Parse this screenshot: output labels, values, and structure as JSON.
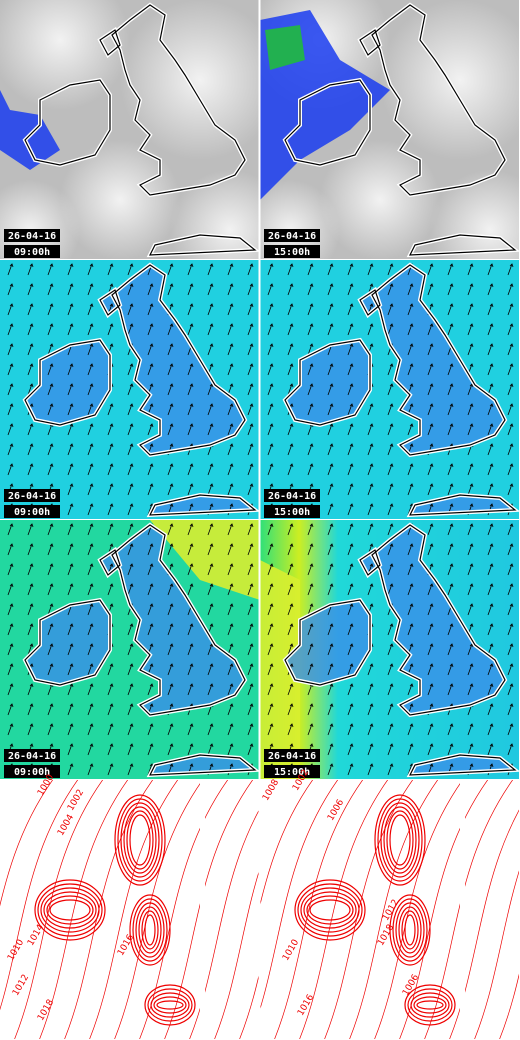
{
  "panels": [
    {
      "date": "26-04-16",
      "time": "09:00h"
    },
    {
      "date": "26-04-16",
      "time": "15:00h"
    },
    {
      "date": "26-04-16",
      "time": "09:00h"
    },
    {
      "date": "26-04-16",
      "time": "15:00h"
    },
    {
      "date": "26-04-16",
      "time": "09:00h"
    },
    {
      "date": "26-04-16",
      "time": "15:00h"
    },
    {
      "contour_labels": [
        "1000",
        "1002",
        "1004",
        "1014",
        "1016",
        "1010",
        "1012",
        "1018"
      ]
    },
    {
      "contour_labels": [
        "1008",
        "1002",
        "1006",
        "1010",
        "1012",
        "1018",
        "1016",
        "1006"
      ]
    }
  ]
}
